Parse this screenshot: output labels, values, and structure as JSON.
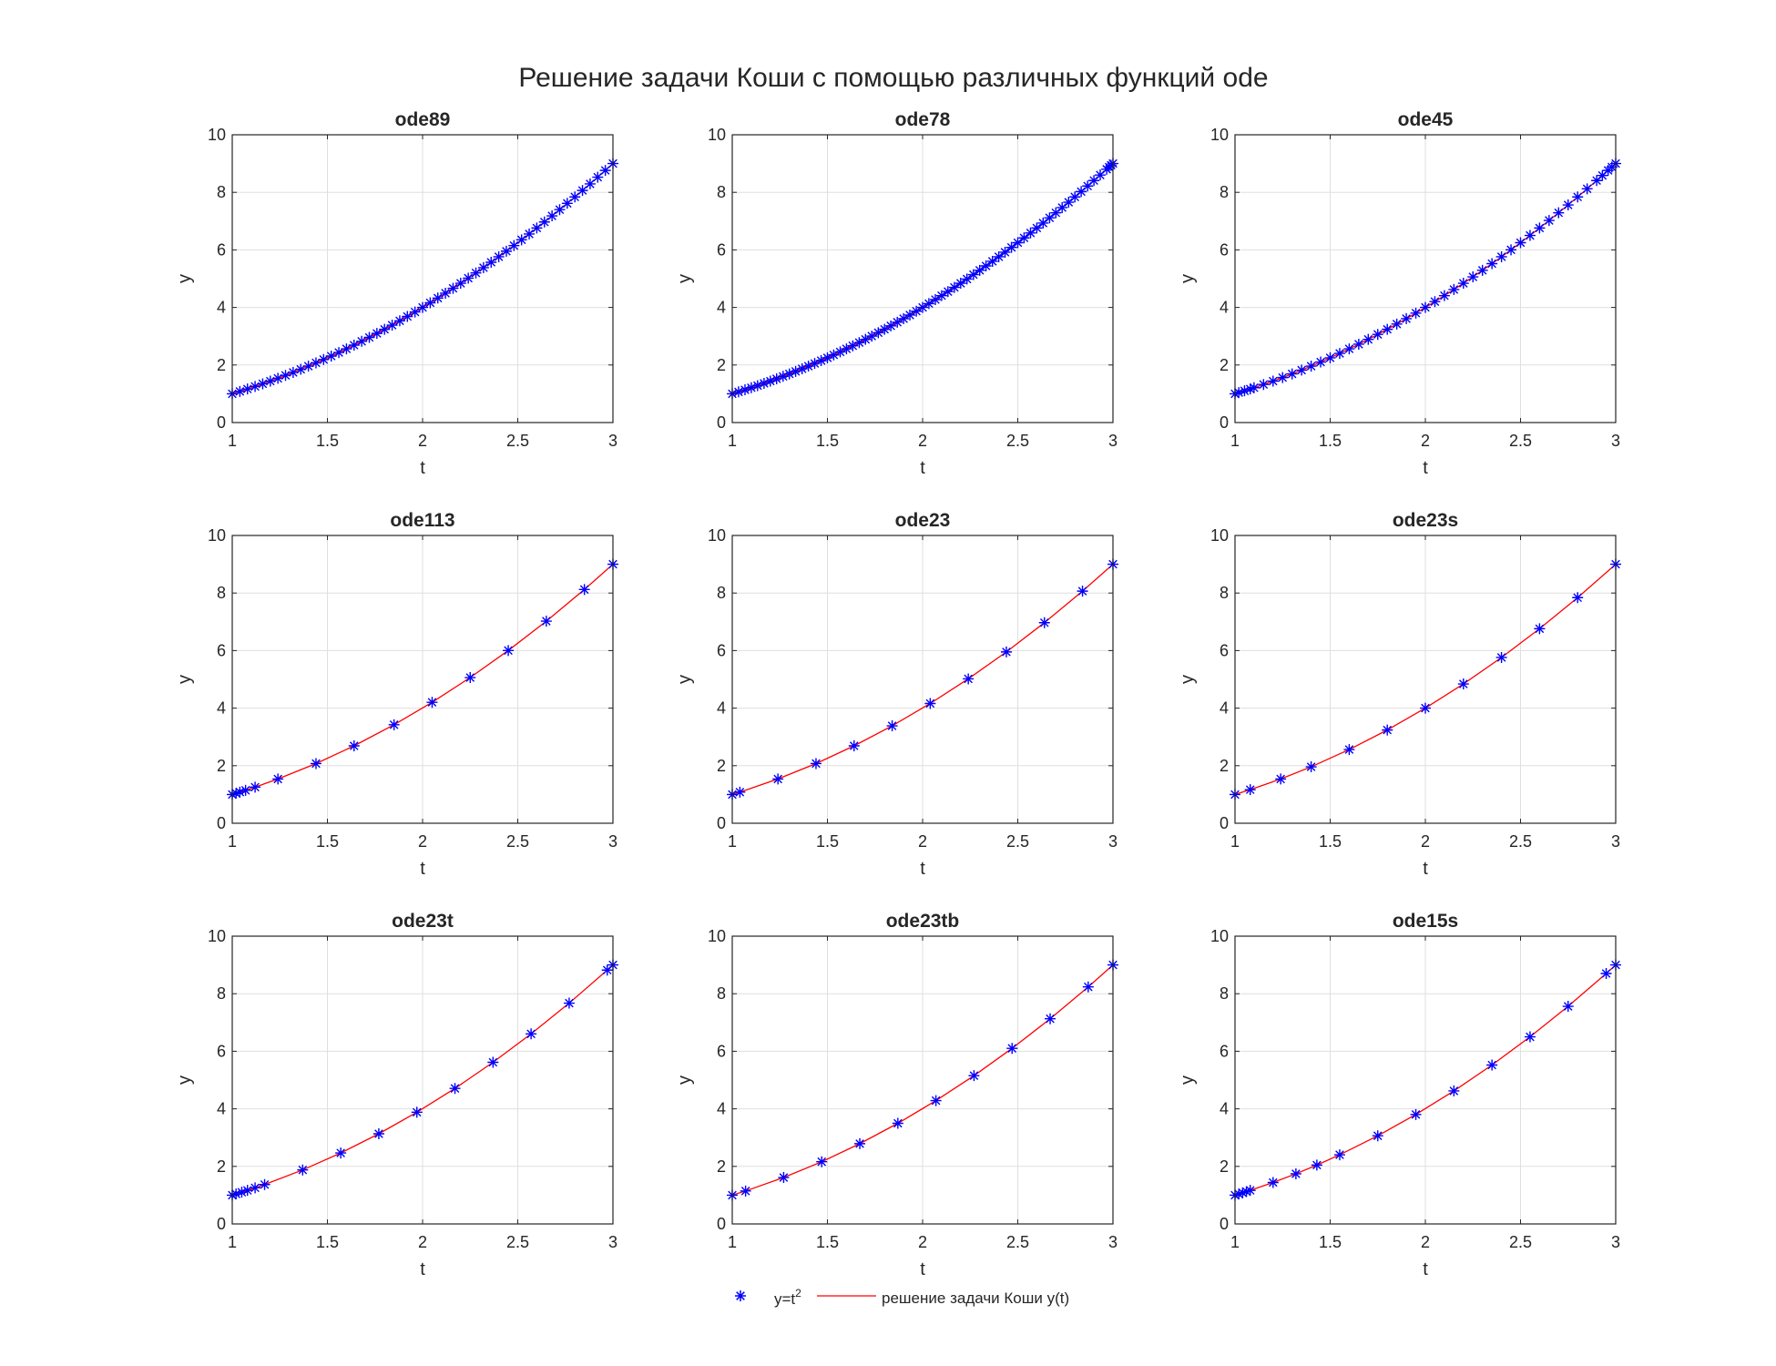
{
  "figure": {
    "title": "Решение задачи Коши с помощью различных функций ode"
  },
  "legend": {
    "markers_label_base": "y=t",
    "markers_label_sup": "2",
    "line_label": "решение задачи Коши y(t)",
    "marker_color": "#0000ff",
    "line_color": "#ff0000"
  },
  "chart_data": [
    {
      "type": "line",
      "title": "ode89",
      "xlabel": "t",
      "ylabel": "y",
      "xlim": [
        1,
        3
      ],
      "ylim": [
        0,
        10
      ],
      "xticks": [
        "1",
        "1.5",
        "2",
        "2.5",
        "3"
      ],
      "yticks": [
        "0",
        "2",
        "4",
        "6",
        "8",
        "10"
      ],
      "grid": true,
      "x": [
        1.0,
        1.04,
        1.08,
        1.12,
        1.16,
        1.2,
        1.24,
        1.28,
        1.32,
        1.36,
        1.4,
        1.44,
        1.48,
        1.52,
        1.56,
        1.6,
        1.64,
        1.68,
        1.72,
        1.76,
        1.8,
        1.84,
        1.88,
        1.92,
        1.96,
        2.0,
        2.04,
        2.08,
        2.12,
        2.16,
        2.2,
        2.24,
        2.28,
        2.32,
        2.36,
        2.4,
        2.44,
        2.48,
        2.52,
        2.56,
        2.6,
        2.64,
        2.68,
        2.72,
        2.76,
        2.8,
        2.84,
        2.88,
        2.92,
        2.96,
        3.0
      ]
    },
    {
      "type": "line",
      "title": "ode78",
      "xlabel": "t",
      "ylabel": "y",
      "xlim": [
        1,
        3
      ],
      "ylim": [
        0,
        10
      ],
      "xticks": [
        "1",
        "1.5",
        "2",
        "2.5",
        "3"
      ],
      "yticks": [
        "0",
        "2",
        "4",
        "6",
        "8",
        "10"
      ],
      "grid": true,
      "x": [
        1.0,
        1.033,
        1.067,
        1.1,
        1.133,
        1.167,
        1.2,
        1.233,
        1.267,
        1.3,
        1.333,
        1.367,
        1.4,
        1.433,
        1.467,
        1.5,
        1.533,
        1.567,
        1.6,
        1.633,
        1.667,
        1.7,
        1.733,
        1.767,
        1.8,
        1.833,
        1.867,
        1.9,
        1.933,
        1.967,
        2.0,
        2.033,
        2.067,
        2.1,
        2.133,
        2.167,
        2.2,
        2.233,
        2.267,
        2.3,
        2.333,
        2.367,
        2.4,
        2.433,
        2.467,
        2.5,
        2.533,
        2.567,
        2.6,
        2.633,
        2.667,
        2.7,
        2.733,
        2.767,
        2.8,
        2.833,
        2.867,
        2.9,
        2.933,
        2.967,
        2.98,
        2.99,
        3.0
      ]
    },
    {
      "type": "line",
      "title": "ode45",
      "xlabel": "t",
      "ylabel": "y",
      "xlim": [
        1,
        3
      ],
      "ylim": [
        0,
        10
      ],
      "xticks": [
        "1",
        "1.5",
        "2",
        "2.5",
        "3"
      ],
      "yticks": [
        "0",
        "2",
        "4",
        "6",
        "8",
        "10"
      ],
      "grid": true,
      "x": [
        1.0,
        1.02,
        1.05,
        1.08,
        1.1,
        1.15,
        1.2,
        1.25,
        1.3,
        1.35,
        1.4,
        1.45,
        1.5,
        1.55,
        1.6,
        1.65,
        1.7,
        1.75,
        1.8,
        1.85,
        1.9,
        1.95,
        2.0,
        2.05,
        2.1,
        2.15,
        2.2,
        2.25,
        2.3,
        2.35,
        2.4,
        2.45,
        2.5,
        2.55,
        2.6,
        2.65,
        2.7,
        2.75,
        2.8,
        2.85,
        2.9,
        2.93,
        2.96,
        2.98,
        3.0
      ]
    },
    {
      "type": "line",
      "title": "ode113",
      "xlabel": "t",
      "ylabel": "y",
      "xlim": [
        1,
        3
      ],
      "ylim": [
        0,
        10
      ],
      "xticks": [
        "1",
        "1.5",
        "2",
        "2.5",
        "3"
      ],
      "yticks": [
        "0",
        "2",
        "4",
        "6",
        "8",
        "10"
      ],
      "grid": true,
      "x": [
        1.0,
        1.02,
        1.04,
        1.07,
        1.12,
        1.24,
        1.44,
        1.64,
        1.85,
        2.05,
        2.25,
        2.45,
        2.65,
        2.85,
        3.0
      ]
    },
    {
      "type": "line",
      "title": "ode23",
      "xlabel": "t",
      "ylabel": "y",
      "xlim": [
        1,
        3
      ],
      "ylim": [
        0,
        10
      ],
      "xticks": [
        "1",
        "1.5",
        "2",
        "2.5",
        "3"
      ],
      "yticks": [
        "0",
        "2",
        "4",
        "6",
        "8",
        "10"
      ],
      "grid": true,
      "x": [
        1.0,
        1.04,
        1.24,
        1.44,
        1.64,
        1.84,
        2.04,
        2.24,
        2.44,
        2.64,
        2.84,
        3.0
      ]
    },
    {
      "type": "line",
      "title": "ode23s",
      "xlabel": "t",
      "ylabel": "y",
      "xlim": [
        1,
        3
      ],
      "ylim": [
        0,
        10
      ],
      "xticks": [
        "1",
        "1.5",
        "2",
        "2.5",
        "3"
      ],
      "yticks": [
        "0",
        "2",
        "4",
        "6",
        "8",
        "10"
      ],
      "grid": true,
      "x": [
        1.0,
        1.08,
        1.24,
        1.4,
        1.6,
        1.8,
        2.0,
        2.2,
        2.4,
        2.6,
        2.8,
        3.0
      ]
    },
    {
      "type": "line",
      "title": "ode23t",
      "xlabel": "t",
      "ylabel": "y",
      "xlim": [
        1,
        3
      ],
      "ylim": [
        0,
        10
      ],
      "xticks": [
        "1",
        "1.5",
        "2",
        "2.5",
        "3"
      ],
      "yticks": [
        "0",
        "2",
        "4",
        "6",
        "8",
        "10"
      ],
      "grid": true,
      "x": [
        1.0,
        1.02,
        1.05,
        1.08,
        1.12,
        1.17,
        1.37,
        1.57,
        1.77,
        1.97,
        2.17,
        2.37,
        2.57,
        2.77,
        2.97,
        3.0
      ]
    },
    {
      "type": "line",
      "title": "ode23tb",
      "xlabel": "t",
      "ylabel": "y",
      "xlim": [
        1,
        3
      ],
      "ylim": [
        0,
        10
      ],
      "xticks": [
        "1",
        "1.5",
        "2",
        "2.5",
        "3"
      ],
      "yticks": [
        "0",
        "2",
        "4",
        "6",
        "8",
        "10"
      ],
      "grid": true,
      "x": [
        1.0,
        1.07,
        1.27,
        1.47,
        1.67,
        1.87,
        2.07,
        2.27,
        2.47,
        2.67,
        2.87,
        3.0
      ]
    },
    {
      "type": "line",
      "title": "ode15s",
      "xlabel": "t",
      "ylabel": "y",
      "xlim": [
        1,
        3
      ],
      "ylim": [
        0,
        10
      ],
      "xticks": [
        "1",
        "1.5",
        "2",
        "2.5",
        "3"
      ],
      "yticks": [
        "0",
        "2",
        "4",
        "6",
        "8",
        "10"
      ],
      "grid": true,
      "x": [
        1.0,
        1.02,
        1.04,
        1.06,
        1.08,
        1.2,
        1.32,
        1.43,
        1.55,
        1.75,
        1.95,
        2.15,
        2.35,
        2.55,
        2.75,
        2.95,
        3.0
      ]
    }
  ]
}
